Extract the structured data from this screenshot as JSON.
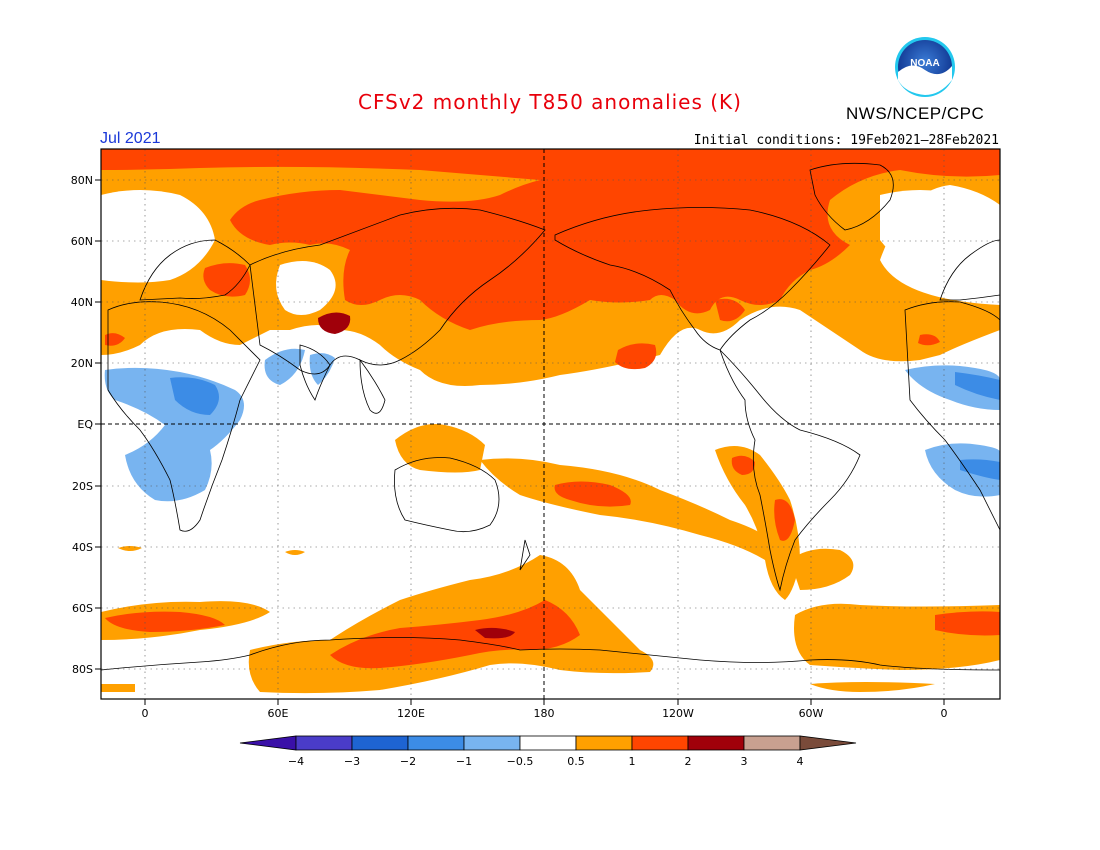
{
  "header": {
    "title": "CFSv2 monthly T850 anomalies (K)",
    "org": "NWS/NCEP/CPC",
    "month": "Jul 2021",
    "initial_conditions": "Initial conditions: 19Feb2021–28Feb2021"
  },
  "logo": {
    "icon": "noaa-logo",
    "text": "NOAA"
  },
  "map": {
    "projection": "equirectangular",
    "lon_range": [
      -20,
      380
    ],
    "lat_range": [
      -90,
      90
    ],
    "lat_ticks": [
      "80N",
      "60N",
      "40N",
      "20N",
      "EQ",
      "20S",
      "40S",
      "60S",
      "80S"
    ],
    "lon_ticks": [
      "0",
      "60E",
      "120E",
      "180",
      "120W",
      "60W",
      "0"
    ],
    "dashed_lines": [
      "EQ",
      "180"
    ]
  },
  "colorbar": {
    "labels": [
      "−4",
      "−3",
      "−2",
      "−1",
      "−0.5",
      "0.5",
      "1",
      "2",
      "3",
      "4"
    ],
    "colors": [
      "#3a10a8",
      "#4a3cc8",
      "#1e64d2",
      "#3c8ce6",
      "#78b4f0",
      "#ffffff",
      "#ffa000",
      "#ff4500",
      "#a0000a",
      "#c8a090",
      "#7a4b3a"
    ]
  }
}
